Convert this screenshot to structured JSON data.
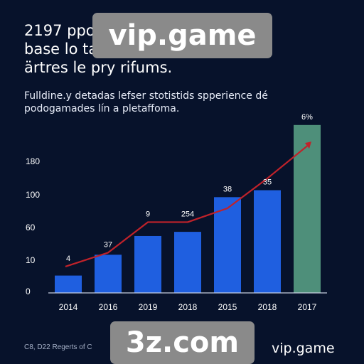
{
  "header": {
    "title_lines": [
      "2197 ppo",
      "base lo ta",
      "ärtres le pry rifums."
    ],
    "subtitle_lines": [
      "Fulldine.y detadas lefser stotistids spperience dé",
      "podogamades lín a pletaffoma."
    ]
  },
  "watermarks": {
    "top": "vip.game",
    "bottom": "3z.com"
  },
  "footer": {
    "left_text": "C8, D22 Regerts of C",
    "right_text": "vip.game"
  },
  "chart_data": {
    "type": "bar",
    "categories": [
      "2014",
      "2016",
      "2019",
      "2018",
      "2015",
      "2018",
      "2017"
    ],
    "values": [
      25,
      55,
      82,
      88,
      138,
      148,
      242
    ],
    "line_values": [
      38,
      58,
      102,
      102,
      122,
      165,
      215
    ],
    "data_labels": [
      "4",
      "37",
      "9",
      "254",
      "38",
      "35",
      "6%"
    ],
    "data_label_targets": [
      "line",
      "line",
      "line",
      "line",
      "bar",
      "bar",
      "bar"
    ],
    "y_ticks": [
      0,
      10,
      60,
      100,
      180
    ],
    "ylim": [
      0,
      250
    ],
    "colors": {
      "bar": "#1f5fe0",
      "bar_highlight": "#4e8f7a",
      "line": "#c0222a",
      "axis": "#c7cfe0"
    },
    "highlight_index": 6,
    "grid": false
  }
}
